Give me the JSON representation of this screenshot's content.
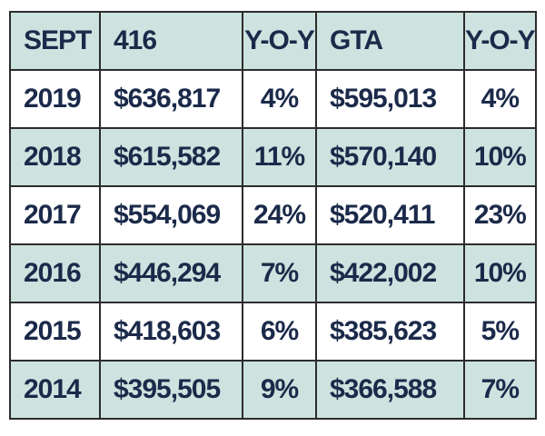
{
  "table": {
    "headers": [
      "SEPT",
      "416",
      "Y-O-Y",
      "GTA",
      "Y-O-Y"
    ],
    "rows": [
      [
        "2019",
        "$636,817",
        "4%",
        "$595,013",
        "4%"
      ],
      [
        "2018",
        "$615,582",
        "11%",
        "$570,140",
        "10%"
      ],
      [
        "2017",
        "$554,069",
        "24%",
        "$520,411",
        "23%"
      ],
      [
        "2016",
        "$446,294",
        "7%",
        "$422,002",
        "10%"
      ],
      [
        "2015",
        "$418,603",
        "6%",
        "$385,623",
        "5%"
      ],
      [
        "2014",
        "$395,505",
        "9%",
        "$366,588",
        "7%"
      ]
    ]
  },
  "colors": {
    "shaded_row": "#cde3df",
    "plain_row": "#ffffff",
    "text": "#1b2a4a",
    "border": "#2c2c2c"
  }
}
